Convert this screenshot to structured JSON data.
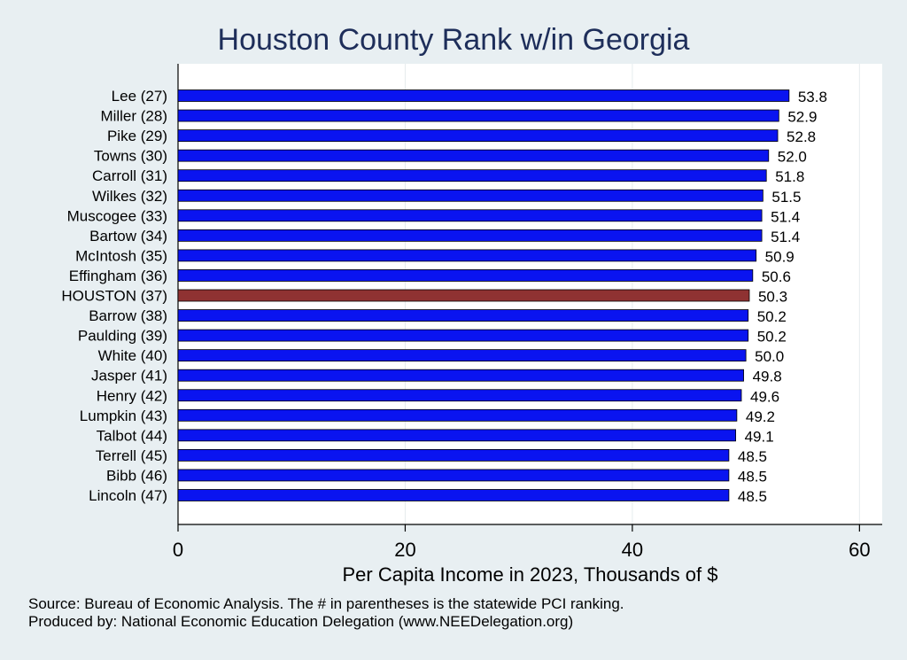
{
  "chart_data": {
    "type": "bar",
    "orientation": "horizontal",
    "title": "Houston County Rank w/in Georgia",
    "xlabel": "Per Capita Income in 2023, Thousands of $",
    "ylabel": "",
    "xlim": [
      0,
      62
    ],
    "xticks": [
      0,
      20,
      40,
      60
    ],
    "xtick_labels": [
      "0",
      "20",
      "40",
      "60"
    ],
    "grid": "vertical",
    "categories": [
      "Lee (27)",
      "Miller (28)",
      "Pike (29)",
      "Towns (30)",
      "Carroll (31)",
      "Wilkes (32)",
      "Muscogee (33)",
      "Bartow (34)",
      "McIntosh (35)",
      "Effingham (36)",
      "HOUSTON (37)",
      "Barrow (38)",
      "Paulding (39)",
      "White (40)",
      "Jasper (41)",
      "Henry (42)",
      "Lumpkin (43)",
      "Talbot (44)",
      "Terrell (45)",
      "Bibb (46)",
      "Lincoln (47)"
    ],
    "values": [
      53.8,
      52.9,
      52.8,
      52.0,
      51.8,
      51.5,
      51.4,
      51.4,
      50.9,
      50.6,
      50.3,
      50.2,
      50.2,
      50.0,
      49.8,
      49.6,
      49.2,
      49.1,
      48.5,
      48.5,
      48.5
    ],
    "value_labels": [
      "53.8",
      "52.9",
      "52.8",
      "52.0",
      "51.8",
      "51.5",
      "51.4",
      "51.4",
      "50.9",
      "50.6",
      "50.3",
      "50.2",
      "50.2",
      "50.0",
      "49.8",
      "49.6",
      "49.2",
      "49.1",
      "48.5",
      "48.5",
      "48.5"
    ],
    "highlight_category": "HOUSTON (37)",
    "colors": {
      "bar": "#0a14f0",
      "highlight": "#8f3232",
      "background": "#e8eff2",
      "plot_background": "#ffffff",
      "title": "#1e2e5a"
    },
    "notes": [
      "Source: Bureau of Economic Analysis. The # in parentheses is the statewide PCI ranking.",
      "Produced by: National Economic Education Delegation (www.NEEDelegation.org)"
    ]
  }
}
